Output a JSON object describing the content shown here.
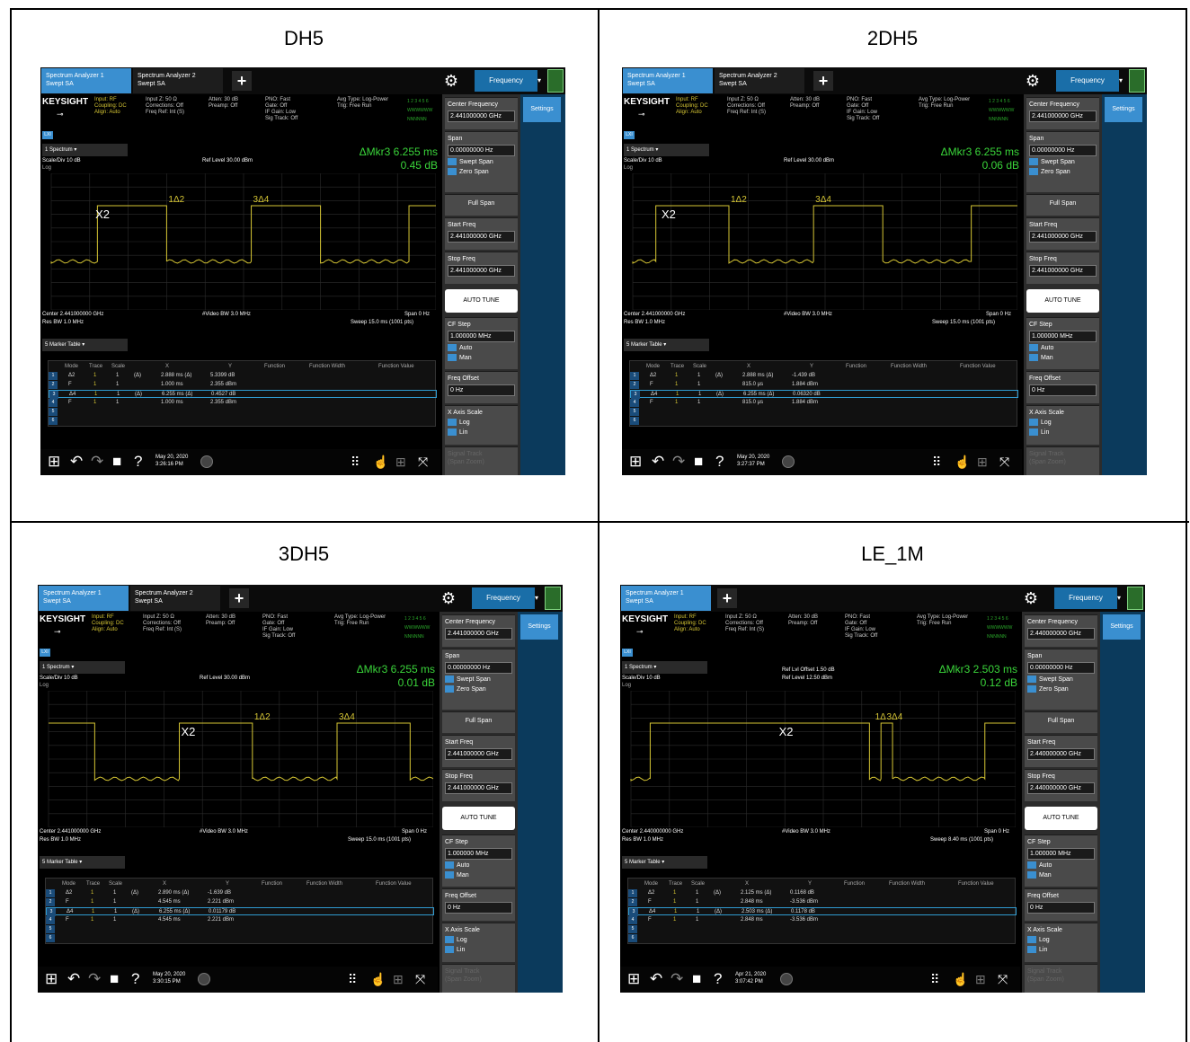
{
  "common": {
    "tab_active": "Spectrum Analyzer 1\nSwept SA",
    "tab_inactive": "Spectrum Analyzer 2\nSwept SA",
    "freq_button": "Frequency",
    "settings": "Settings",
    "logo": "KEYSIGHT",
    "input": "Input: RF\nCoupling: DC\nAlign: Auto",
    "input2": "Input Z: 50 Ω\nCorrections: Off\nFreq Ref: Int (S)",
    "atten": "Atten: 30 dB\nPreamp: Off",
    "pnoise": "PNO: Fast\nGate: Off\nIF Gain: Low\nSig Track: Off",
    "avg": "Avg Type: Log-Power\nTrig: Free Run",
    "spectrum_label": "1 Spectrum",
    "scale": "Scale/Div 10 dB",
    "log": "Log",
    "marker_table_label": "5 Marker Table",
    "video_bw": "#Video BW 3.0 MHz",
    "span": "Span 0 Hz",
    "res_bw": "Res BW 1.0 MHz",
    "col_mode": "Mode",
    "col_trace": "Trace",
    "col_scale": "Scale",
    "col_x": "X",
    "col_y": "Y",
    "col_function": "Function",
    "col_fwidth": "Function Width",
    "col_fvalue": "Function Value",
    "center_freq_label": "Center Frequency",
    "span_label": "Span",
    "span_value": "0.00000000 Hz",
    "swept_span": "Swept Span",
    "zero_span": "Zero Span",
    "full_span": "Full Span",
    "start_freq_label": "Start Freq",
    "stop_freq_label": "Stop Freq",
    "auto_tune": "AUTO TUNE",
    "cf_step_label": "CF Step",
    "cf_step_value": "1.000000 MHz",
    "auto": "Auto",
    "man": "Man",
    "freq_offset_label": "Freq Offset",
    "freq_offset_value": "0 Hz",
    "xaxis_label": "X Axis Scale",
    "log_opt": "Log",
    "lin_opt": "Lin",
    "signal_track": "Signal Track\n(Span Zoom)"
  },
  "panels": [
    {
      "title": "DH5",
      "ref_level": "Ref Level 30.00 dBm",
      "ref_offset": "",
      "mkr_delta": "ΔMkr3 6.255 ms",
      "mkr_value": "0.45 dB",
      "center": "Center 2.441000000 GHz",
      "freq_value": "2.441000000 GHz",
      "sweep": "Sweep 15.0 ms (1001 pts)",
      "date": "May 20, 2020\n3:26:16 PM",
      "markers": [
        {
          "n": "1",
          "mode": "Δ2",
          "trace": "1",
          "scale": "1",
          "ref": "(Δ)",
          "x": "2.888 ms (Δ)",
          "y": "5.3399 dB"
        },
        {
          "n": "2",
          "mode": "F",
          "trace": "1",
          "scale": "1",
          "ref": "",
          "x": "1.000 ms",
          "y": "2.355 dBm"
        },
        {
          "n": "3",
          "mode": "Δ4",
          "trace": "1",
          "scale": "1",
          "ref": "(Δ)",
          "x": "6.255 ms (Δ)",
          "y": "0.4527 dB"
        },
        {
          "n": "4",
          "mode": "F",
          "trace": "1",
          "scale": "1",
          "ref": "",
          "x": "1.000 ms",
          "y": "2.355 dBm"
        },
        {
          "n": "5",
          "mode": "",
          "trace": "",
          "scale": "",
          "ref": "",
          "x": "",
          "y": ""
        },
        {
          "n": "6",
          "mode": "",
          "trace": "",
          "scale": "",
          "ref": "",
          "x": "",
          "y": ""
        }
      ],
      "trace": {
        "segments": [
          [
            0,
            "low"
          ],
          [
            0.12,
            "high"
          ],
          [
            0.3,
            "low"
          ],
          [
            0.52,
            "high"
          ],
          [
            0.7,
            "low"
          ],
          [
            0.93,
            "high"
          ]
        ],
        "marker_x": [
          0.11,
          0.3,
          0.52
        ],
        "marker_labels": [
          "X2",
          "1Δ2",
          "3Δ4"
        ]
      }
    },
    {
      "title": "2DH5",
      "ref_level": "Ref Level 30.00 dBm",
      "ref_offset": "",
      "mkr_delta": "ΔMkr3 6.255 ms",
      "mkr_value": "0.06 dB",
      "center": "Center 2.441000000 GHz",
      "freq_value": "2.441000000 GHz",
      "sweep": "Sweep 15.0 ms (1001 pts)",
      "date": "May 20, 2020\n3:27:37 PM",
      "markers": [
        {
          "n": "1",
          "mode": "Δ2",
          "trace": "1",
          "scale": "1",
          "ref": "(Δ)",
          "x": "2.888 ms (Δ)",
          "y": "-1.439 dB"
        },
        {
          "n": "2",
          "mode": "F",
          "trace": "1",
          "scale": "1",
          "ref": "",
          "x": "815.0 µs",
          "y": "1.884 dBm"
        },
        {
          "n": "3",
          "mode": "Δ4",
          "trace": "1",
          "scale": "1",
          "ref": "(Δ)",
          "x": "6.255 ms (Δ)",
          "y": "0.06320 dB"
        },
        {
          "n": "4",
          "mode": "F",
          "trace": "1",
          "scale": "1",
          "ref": "",
          "x": "815.0 µs",
          "y": "1.884 dBm"
        },
        {
          "n": "5",
          "mode": "",
          "trace": "",
          "scale": "",
          "ref": "",
          "x": "",
          "y": ""
        },
        {
          "n": "6",
          "mode": "",
          "trace": "",
          "scale": "",
          "ref": "",
          "x": "",
          "y": ""
        }
      ],
      "trace": {
        "segments": [
          [
            0,
            "low"
          ],
          [
            0.06,
            "high"
          ],
          [
            0.25,
            "low"
          ],
          [
            0.47,
            "high"
          ],
          [
            0.65,
            "low"
          ],
          [
            0.88,
            "high"
          ]
        ],
        "marker_x": [
          0.07,
          0.25,
          0.47
        ],
        "marker_labels": [
          "X2",
          "1Δ2",
          "3Δ4"
        ]
      }
    },
    {
      "title": "3DH5",
      "ref_level": "Ref Level 30.00 dBm",
      "ref_offset": "",
      "mkr_delta": "ΔMkr3 6.255 ms",
      "mkr_value": "0.01 dB",
      "center": "Center 2.441000000 GHz",
      "freq_value": "2.441000000 GHz",
      "sweep": "Sweep 15.0 ms (1001 pts)",
      "date": "May 20, 2020\n3:30:15 PM",
      "markers": [
        {
          "n": "1",
          "mode": "Δ2",
          "trace": "1",
          "scale": "1",
          "ref": "(Δ)",
          "x": "2.890 ms (Δ)",
          "y": "-1.639 dB"
        },
        {
          "n": "2",
          "mode": "F",
          "trace": "1",
          "scale": "1",
          "ref": "",
          "x": "4.545 ms",
          "y": "2.221 dBm"
        },
        {
          "n": "3",
          "mode": "Δ4",
          "trace": "1",
          "scale": "1",
          "ref": "(Δ)",
          "x": "6.255 ms (Δ)",
          "y": "0.01179 dB"
        },
        {
          "n": "4",
          "mode": "F",
          "trace": "1",
          "scale": "1",
          "ref": "",
          "x": "4.545 ms",
          "y": "2.221 dBm"
        },
        {
          "n": "5",
          "mode": "",
          "trace": "",
          "scale": "",
          "ref": "",
          "x": "",
          "y": ""
        },
        {
          "n": "6",
          "mode": "",
          "trace": "",
          "scale": "",
          "ref": "",
          "x": "",
          "y": ""
        }
      ],
      "trace": {
        "segments": [
          [
            0,
            "high"
          ],
          [
            0.12,
            "low"
          ],
          [
            0.34,
            "high"
          ],
          [
            0.53,
            "low"
          ],
          [
            0.75,
            "high"
          ],
          [
            0.94,
            "low"
          ]
        ],
        "marker_x": [
          0.34,
          0.53,
          0.75
        ],
        "marker_labels": [
          "X2",
          "1Δ2",
          "3Δ4"
        ]
      }
    },
    {
      "title": "LE_1M",
      "ref_level": "Ref Level 12.50 dBm",
      "ref_offset": "Ref Lvl Offset 1.50 dB",
      "mkr_delta": "ΔMkr3 2.503 ms",
      "mkr_value": "0.12 dB",
      "center": "Center 2.440000000 GHz",
      "freq_value": "2.440000000 GHz",
      "sweep": "Sweep 8.40 ms (1001 pts)",
      "date": "Apr 21, 2020\n3:07:42 PM",
      "markers": [
        {
          "n": "1",
          "mode": "Δ2",
          "trace": "1",
          "scale": "1",
          "ref": "(Δ)",
          "x": "2.125 ms (Δ)",
          "y": "0.1168 dB"
        },
        {
          "n": "2",
          "mode": "F",
          "trace": "1",
          "scale": "1",
          "ref": "",
          "x": "2.848 ms",
          "y": "-3.536 dBm"
        },
        {
          "n": "3",
          "mode": "Δ4",
          "trace": "1",
          "scale": "1",
          "ref": "(Δ)",
          "x": "2.503 ms (Δ)",
          "y": "0.1178 dB"
        },
        {
          "n": "4",
          "mode": "F",
          "trace": "1",
          "scale": "1",
          "ref": "",
          "x": "2.848 ms",
          "y": "-3.536 dBm"
        },
        {
          "n": "5",
          "mode": "",
          "trace": "",
          "scale": "",
          "ref": "",
          "x": "",
          "y": ""
        },
        {
          "n": "6",
          "mode": "",
          "trace": "",
          "scale": "",
          "ref": "",
          "x": "",
          "y": ""
        }
      ],
      "trace": {
        "segments": [
          [
            0,
            "low"
          ],
          [
            0.05,
            "high"
          ],
          [
            0.62,
            "low"
          ],
          [
            0.65,
            "high"
          ],
          [
            0.68,
            "low"
          ],
          [
            0.92,
            "high"
          ]
        ],
        "marker_x": [
          0.38,
          0.63,
          0.66
        ],
        "marker_labels": [
          "X2",
          "1Δ",
          "3Δ4"
        ]
      }
    }
  ],
  "colors": {
    "trace": "#d6c634",
    "marker": "#3ad53a",
    "accent": "#3a8fd0"
  }
}
